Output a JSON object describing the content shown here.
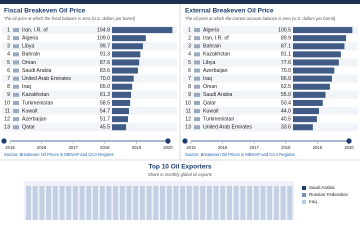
{
  "chart_data": [
    {
      "type": "barh",
      "title": "Fiscal Breakeven Oil Price",
      "subtitle": "The oil price at which the fiscal balance is zero (U.S. dollars per barrel)",
      "ranks": [
        "1",
        "2",
        "3",
        "4",
        "5",
        "6",
        "7",
        "8",
        "9",
        "10",
        "11",
        "12",
        "13"
      ],
      "categories": [
        "Iran, I.R. of",
        "Algeria",
        "Libya",
        "Bahrain",
        "Oman",
        "Saudi Arabia",
        "United Arab Emirates",
        "Iraq",
        "Kazakhstan",
        "Turkmenistan",
        "Kuwait",
        "Azerbaijan",
        "Qatar"
      ],
      "values": [
        194.8,
        109.0,
        99.7,
        91.3,
        87.6,
        83.6,
        70.0,
        65.0,
        61.3,
        58.5,
        54.7,
        51.7,
        45.5
      ],
      "value_labels": [
        "194.8",
        "109.0",
        "99.7",
        "91.3",
        "87.6",
        "83.6",
        "70.0",
        "65.0",
        "61.3",
        "58.5",
        "54.7",
        "51.7",
        "45.5"
      ],
      "color": "#3f5b86",
      "xlim": [
        0,
        200
      ],
      "timeline": [
        2015,
        2016,
        2017,
        2018,
        2019,
        2020
      ],
      "source": "Source: Breakeven Oil Prices in MENAP and CCA Regions"
    },
    {
      "type": "barh",
      "title": "External Breakeven Oil Price",
      "subtitle": "The oil price at which the current account balance is zero (U.S. dollars per barrel)",
      "ranks": [
        "1",
        "2",
        "3",
        "4",
        "5",
        "6",
        "7",
        "8",
        "9",
        "10",
        "11",
        "12",
        "13"
      ],
      "categories": [
        "Algeria",
        "Iran, I.R. of",
        "Bahrain",
        "Kazakhstan",
        "Libya",
        "Azerbaijan",
        "Iraq",
        "Oman",
        "Saudi Arabia",
        "Qatar",
        "Kuwait",
        "Turkmenistan",
        "United Arab Emirates"
      ],
      "values": [
        100.5,
        89.9,
        87.1,
        81.1,
        77.6,
        70.0,
        66.0,
        62.5,
        55.0,
        50.4,
        44.0,
        40.5,
        33.6
      ],
      "value_labels": [
        "100.5",
        "89.9",
        "87.1",
        "81.1",
        "77.6",
        "70.0",
        "66.0",
        "62.5",
        "55.0",
        "50.4",
        "44.0",
        "40.5",
        "33.6"
      ],
      "color": "#3f5b86",
      "xlim": [
        0,
        105
      ],
      "timeline": [
        2015,
        2016,
        2017,
        2018,
        2019,
        2020
      ],
      "source": "Source: Breakeven Oil Prices in MENAP and CCA Regions"
    },
    {
      "type": "area",
      "title": "Top 10 Oil Exporters",
      "subtitle": "Share in monthly global oil exports",
      "series": [
        {
          "name": "Saudi Arabia",
          "color": "#1f3b73"
        },
        {
          "name": "Russian Federation",
          "color": "#6f8fbf"
        },
        {
          "name": "Iraq",
          "color": "#b9cbe4"
        }
      ]
    }
  ]
}
